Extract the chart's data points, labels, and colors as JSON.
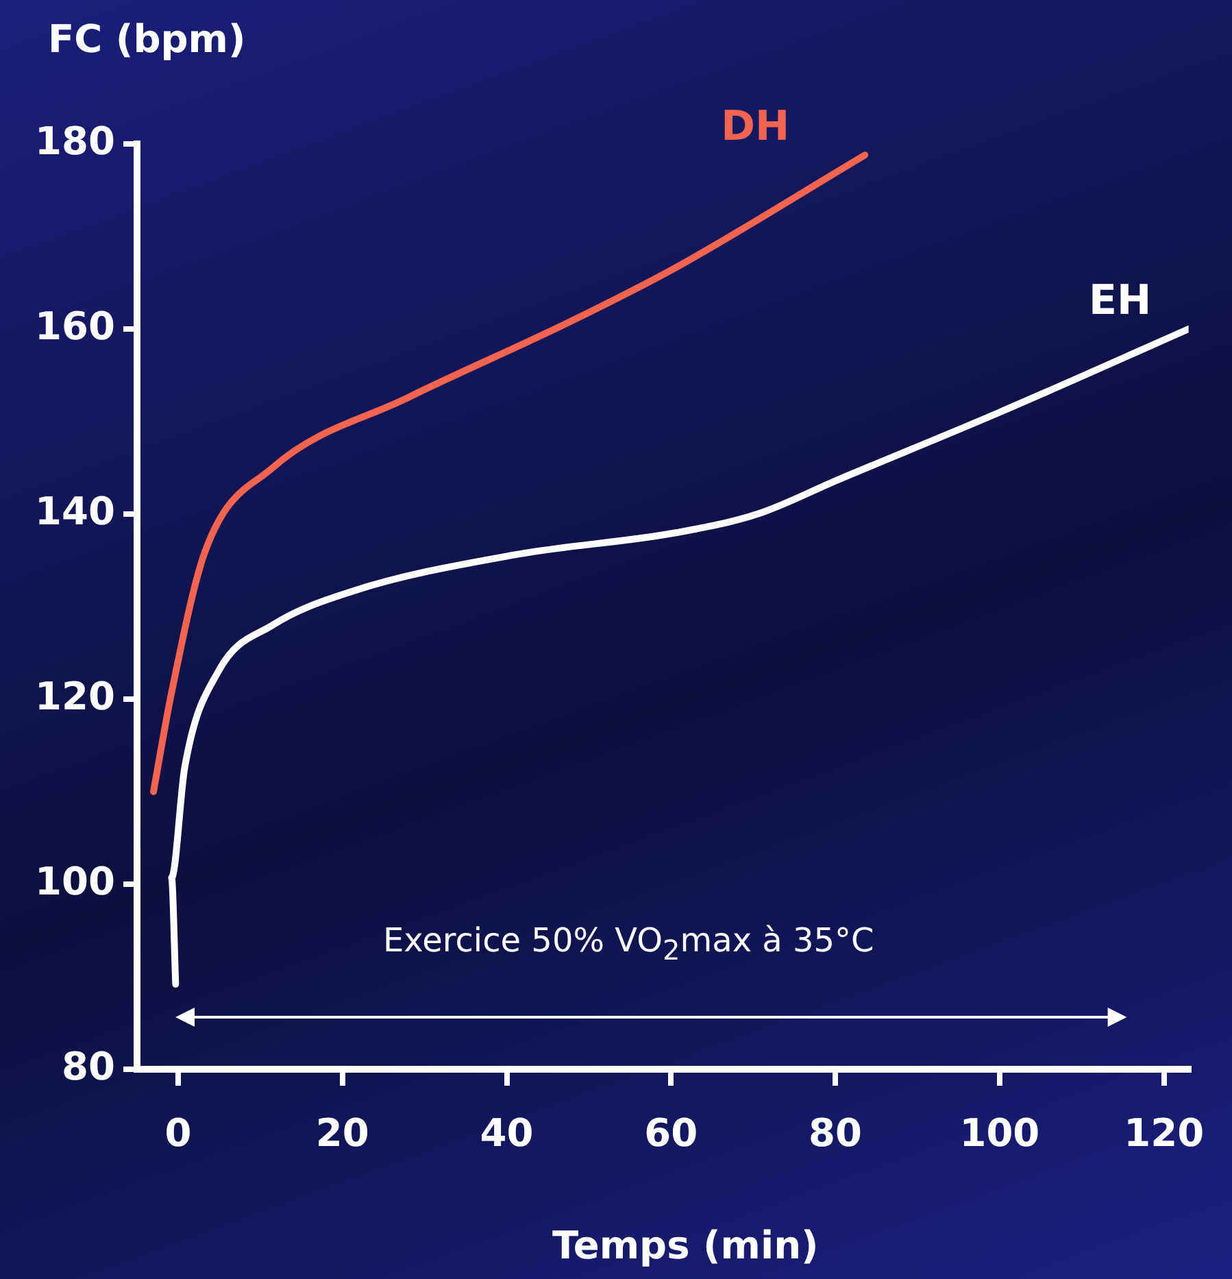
{
  "chart_data": {
    "type": "line",
    "xlabel": "Temps (min)",
    "ylabel": "FC (bpm)",
    "xlim": [
      -5,
      123
    ],
    "xticks": [
      0,
      20,
      40,
      60,
      80,
      100,
      120
    ],
    "ylim": [
      80,
      180
    ],
    "yticks": [
      80,
      100,
      120,
      140,
      160,
      180
    ],
    "grid": false,
    "legend": false,
    "marker": "none",
    "line_style": "solid",
    "annotations": [
      "Exercice 50% VO$_{2}$max à 35°C"
    ],
    "series": [
      {
        "name": "DH",
        "color": "#f26350",
        "x": [
          -3,
          -0.8,
          3.3,
          11.5,
          28,
          47.5,
          60.7,
          83.6
        ],
        "values": [
          110,
          120.7,
          136,
          145,
          152.6,
          160.7,
          166.7,
          178.8
        ]
      },
      {
        "name": "EH",
        "color": "#ffffff",
        "x": [
          -0.3,
          -0.8,
          0.8,
          4.9,
          11.5,
          21,
          41,
          60.7,
          70.5,
          80.3,
          100,
          123
        ],
        "values": [
          89.2,
          100.7,
          112.6,
          123,
          128,
          131.6,
          135.6,
          138,
          140,
          143.7,
          151,
          160
        ]
      }
    ]
  }
}
